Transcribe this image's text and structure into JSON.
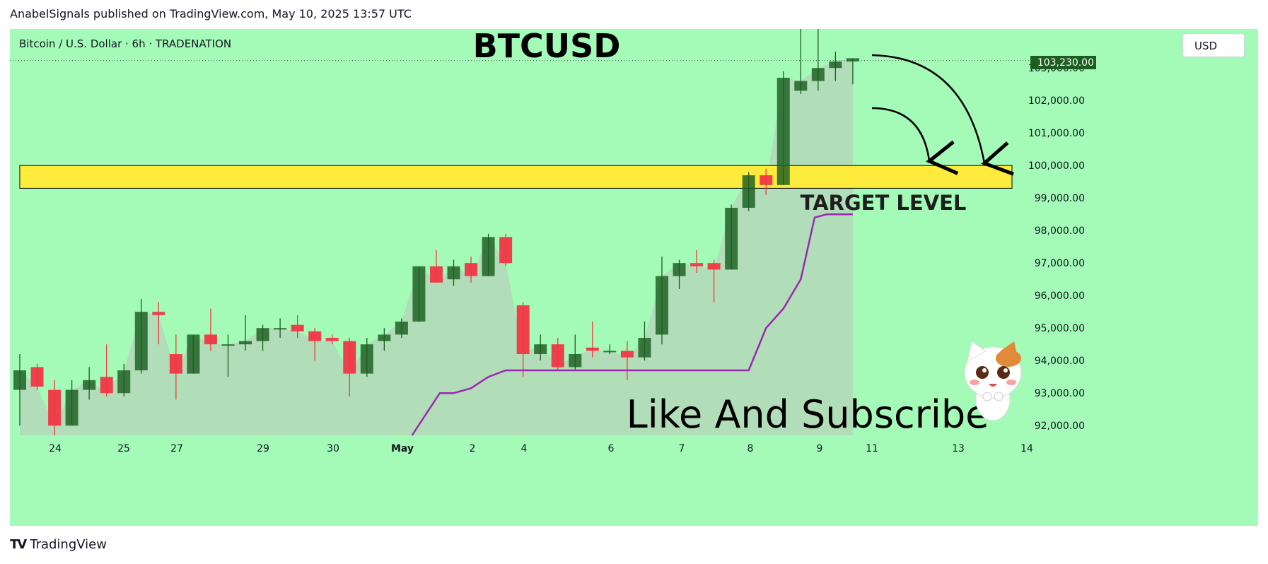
{
  "header": {
    "published": "AnabelSignals published on TradingView.com, May 10, 2025 13:57 UTC"
  },
  "symbol": {
    "info": "Bitcoin / U.S. Dollar · 6h · TRADENATION",
    "currency": "USD"
  },
  "annotations": {
    "title": "BTCUSD",
    "target_label": "TARGET LEVEL",
    "cta": "Like And Subscribe"
  },
  "footer": {
    "brand": "TradingView",
    "brand_mark": "TV"
  },
  "colors": {
    "background": "#a3fbb7",
    "up": "#1b5e20",
    "down": "#f23645",
    "zone": "#ffeb3b",
    "stop_line": "#9c27b0",
    "price_label": "#1b5e20"
  },
  "chart_data": {
    "type": "candlestick",
    "title": "BTCUSD",
    "interval": "6h",
    "ylim": [
      91700,
      104200
    ],
    "y_ticks": [
      "92,000.00",
      "93,000.00",
      "94,000.00",
      "95,000.00",
      "96,000.00",
      "97,000.00",
      "98,000.00",
      "99,000.00",
      "100,000.00",
      "101,000.00",
      "102,000.00",
      "103,000.00"
    ],
    "x_ticks": [
      "24",
      "25",
      "27",
      "29",
      "30",
      "May",
      "2",
      "4",
      "6",
      "7",
      "8",
      "9",
      "11",
      "13",
      "14"
    ],
    "last_price": "103,230.00",
    "target_zone": {
      "low": 99300,
      "high": 100000,
      "label": "TARGET LEVEL"
    },
    "candles": [
      {
        "o": 93100,
        "h": 94200,
        "l": 92000,
        "c": 93700
      },
      {
        "o": 93800,
        "h": 93900,
        "l": 93100,
        "c": 93200
      },
      {
        "o": 93100,
        "h": 93400,
        "l": 91700,
        "c": 92000
      },
      {
        "o": 92000,
        "h": 93400,
        "l": 92000,
        "c": 93100
      },
      {
        "o": 93100,
        "h": 93800,
        "l": 92800,
        "c": 93400
      },
      {
        "o": 93500,
        "h": 94500,
        "l": 92900,
        "c": 93000
      },
      {
        "o": 93000,
        "h": 93900,
        "l": 92900,
        "c": 93700
      },
      {
        "o": 93700,
        "h": 95900,
        "l": 93600,
        "c": 95500
      },
      {
        "o": 95500,
        "h": 95800,
        "l": 94500,
        "c": 95400
      },
      {
        "o": 94200,
        "h": 94800,
        "l": 92800,
        "c": 93600
      },
      {
        "o": 93600,
        "h": 94800,
        "l": 93600,
        "c": 94800
      },
      {
        "o": 94800,
        "h": 95600,
        "l": 94300,
        "c": 94500
      },
      {
        "o": 94500,
        "h": 94800,
        "l": 93500,
        "c": 94500
      },
      {
        "o": 94500,
        "h": 95400,
        "l": 94300,
        "c": 94600
      },
      {
        "o": 94600,
        "h": 95100,
        "l": 94300,
        "c": 95000
      },
      {
        "o": 95000,
        "h": 95300,
        "l": 94700,
        "c": 95000
      },
      {
        "o": 95100,
        "h": 95400,
        "l": 94700,
        "c": 94900
      },
      {
        "o": 94900,
        "h": 95000,
        "l": 94000,
        "c": 94600
      },
      {
        "o": 94700,
        "h": 94800,
        "l": 94500,
        "c": 94600
      },
      {
        "o": 94600,
        "h": 94700,
        "l": 92900,
        "c": 93600
      },
      {
        "o": 93600,
        "h": 94700,
        "l": 93500,
        "c": 94500
      },
      {
        "o": 94600,
        "h": 95000,
        "l": 94300,
        "c": 94800
      },
      {
        "o": 94800,
        "h": 95300,
        "l": 94700,
        "c": 95200
      },
      {
        "o": 95200,
        "h": 96900,
        "l": 95200,
        "c": 96900
      },
      {
        "o": 96900,
        "h": 97400,
        "l": 96400,
        "c": 96400
      },
      {
        "o": 96500,
        "h": 97100,
        "l": 96300,
        "c": 96900
      },
      {
        "o": 97000,
        "h": 97200,
        "l": 96400,
        "c": 96600
      },
      {
        "o": 96600,
        "h": 97900,
        "l": 96600,
        "c": 97800
      },
      {
        "o": 97800,
        "h": 97900,
        "l": 96900,
        "c": 97000
      },
      {
        "o": 95700,
        "h": 95800,
        "l": 93500,
        "c": 94200
      },
      {
        "o": 94200,
        "h": 94800,
        "l": 94000,
        "c": 94500
      },
      {
        "o": 94500,
        "h": 94700,
        "l": 93700,
        "c": 93800
      },
      {
        "o": 93800,
        "h": 94800,
        "l": 93700,
        "c": 94200
      },
      {
        "o": 94400,
        "h": 95200,
        "l": 94100,
        "c": 94300
      },
      {
        "o": 94300,
        "h": 94500,
        "l": 94200,
        "c": 94300
      },
      {
        "o": 94300,
        "h": 94600,
        "l": 93400,
        "c": 94100
      },
      {
        "o": 94100,
        "h": 95200,
        "l": 94000,
        "c": 94700
      },
      {
        "o": 94800,
        "h": 97200,
        "l": 94500,
        "c": 96600
      },
      {
        "o": 96600,
        "h": 97100,
        "l": 96200,
        "c": 97000
      },
      {
        "o": 97000,
        "h": 97400,
        "l": 96700,
        "c": 96900
      },
      {
        "o": 97000,
        "h": 97100,
        "l": 95800,
        "c": 96800
      },
      {
        "o": 96800,
        "h": 98800,
        "l": 96800,
        "c": 98700
      },
      {
        "o": 98700,
        "h": 99800,
        "l": 98600,
        "c": 99700
      },
      {
        "o": 99700,
        "h": 99900,
        "l": 99100,
        "c": 99400
      },
      {
        "o": 99400,
        "h": 102900,
        "l": 99400,
        "c": 102700
      },
      {
        "o": 102300,
        "h": 104200,
        "l": 102200,
        "c": 102600
      },
      {
        "o": 102600,
        "h": 104200,
        "l": 102300,
        "c": 103000
      },
      {
        "o": 103000,
        "h": 103500,
        "l": 102600,
        "c": 103200
      },
      {
        "o": 103200,
        "h": 103300,
        "l": 102500,
        "c": 103300
      }
    ],
    "stop_line": [
      {
        "i": 22.6,
        "v": 91700
      },
      {
        "i": 24.2,
        "v": 93000
      },
      {
        "i": 25.0,
        "v": 93000
      },
      {
        "i": 26.0,
        "v": 93150
      },
      {
        "i": 27.0,
        "v": 93500
      },
      {
        "i": 28.0,
        "v": 93700
      },
      {
        "i": 42.0,
        "v": 93700
      },
      {
        "i": 43.0,
        "v": 95000
      },
      {
        "i": 44.0,
        "v": 95600
      },
      {
        "i": 45.0,
        "v": 96500
      },
      {
        "i": 45.8,
        "v": 98400
      },
      {
        "i": 46.5,
        "v": 98500
      },
      {
        "i": 48.0,
        "v": 98500
      }
    ]
  }
}
